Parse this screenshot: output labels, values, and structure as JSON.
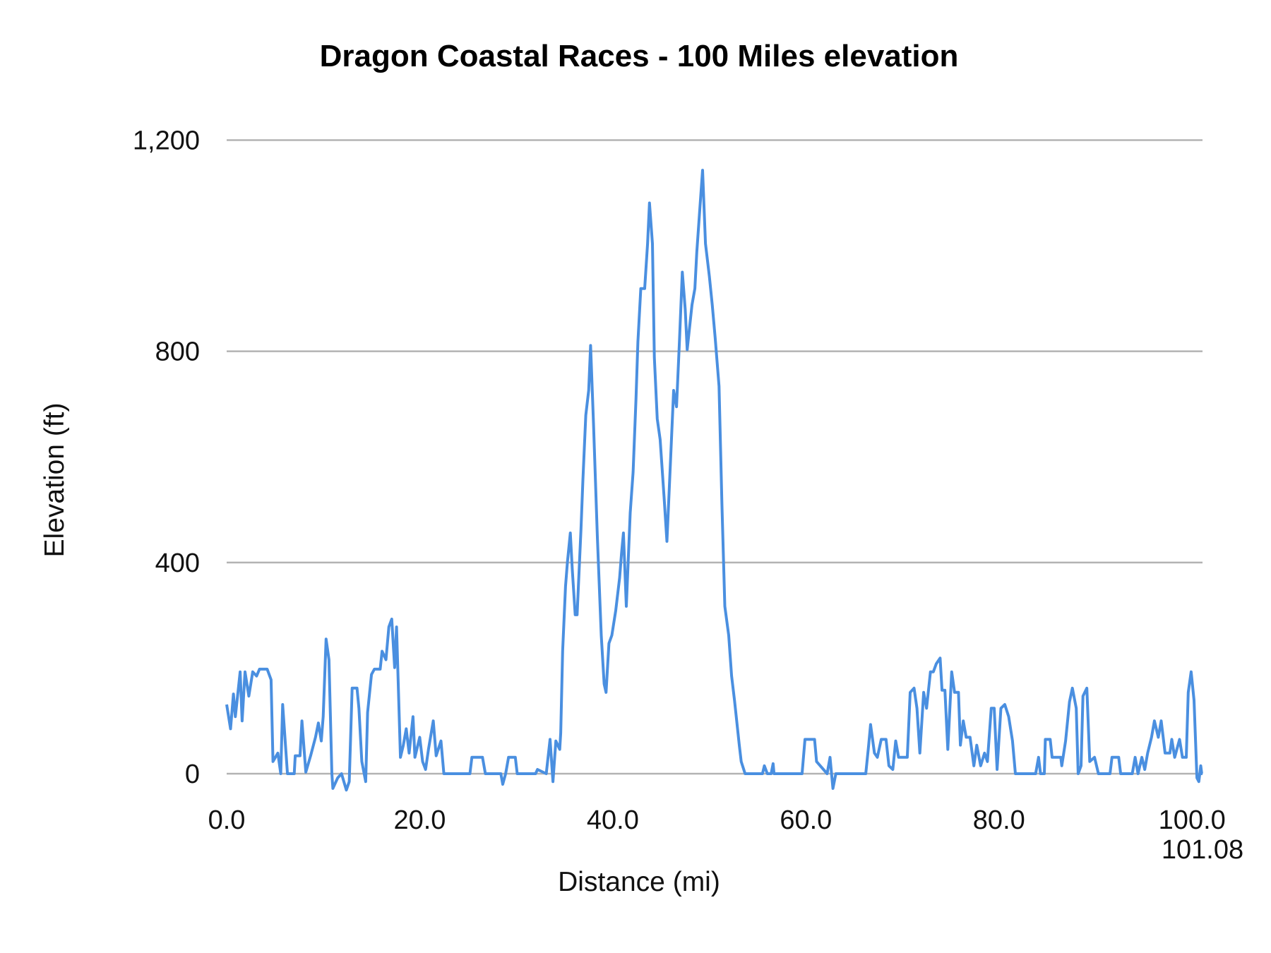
{
  "chart_data": {
    "type": "line",
    "title": "Dragon Coastal Races - 100 Miles elevation",
    "xlabel": "Distance (mi)",
    "ylabel": "Elevation (ft)",
    "xlim": [
      0,
      101.08
    ],
    "ylim": [
      0,
      1200
    ],
    "x_ticks": [
      "0.0",
      "20.0",
      "40.0",
      "60.0",
      "80.0",
      "100.0",
      "101.08"
    ],
    "x_tick_values": [
      0,
      20,
      40,
      60,
      80,
      100,
      101.08
    ],
    "y_ticks": [
      "0",
      "400",
      "800",
      "1,200"
    ],
    "y_tick_values": [
      0,
      400,
      800,
      1200
    ],
    "grid": "horizontal",
    "legend": "none",
    "colors": {
      "line": "#4a8fe0",
      "grid": "#b3b3b3"
    },
    "series": [
      {
        "x": [
          0,
          0.4,
          0.7,
          0.9,
          1.4,
          1.6,
          1.9,
          2.3,
          2.7,
          3.1,
          3.4,
          4.2,
          4.6,
          4.8,
          5.3,
          5.6,
          5.8,
          6.3,
          7.0,
          7.1,
          7.6,
          7.8,
          8.2,
          8.7,
          9.2,
          9.5,
          9.8,
          10.0,
          10.3,
          10.6,
          10.9,
          11.0,
          11.5,
          11.9,
          12.4,
          12.7,
          13.0,
          13.5,
          13.7,
          14.0,
          14.4,
          14.6,
          15.0,
          15.3,
          15.9,
          16.1,
          16.5,
          16.8,
          17.1,
          17.4,
          17.6,
          18.0,
          18.3,
          18.6,
          18.9,
          19.3,
          19.5,
          20.0,
          20.3,
          20.6,
          20.9,
          21.4,
          21.7,
          22.2,
          22.5,
          25.2,
          25.4,
          26.5,
          26.8,
          28.4,
          28.6,
          28.9,
          29.2,
          29.9,
          30.1,
          32.0,
          32.2,
          33.1,
          33.5,
          33.8,
          34.1,
          34.5,
          34.6,
          34.8,
          35.1,
          35.3,
          35.6,
          35.8,
          36.1,
          36.3,
          36.7,
          36.9,
          37.2,
          37.5,
          37.7,
          38.0,
          38.4,
          38.8,
          39.1,
          39.3,
          39.6,
          39.9,
          40.3,
          40.7,
          40.9,
          41.1,
          41.4,
          41.8,
          42.1,
          42.4,
          42.6,
          42.9,
          43.3,
          43.6,
          43.8,
          44.1,
          44.3,
          44.6,
          44.9,
          45.3,
          45.6,
          46.0,
          46.3,
          46.6,
          46.9,
          47.2,
          47.5,
          47.7,
          48.2,
          48.5,
          48.7,
          49.0,
          49.3,
          49.6,
          50.0,
          50.3,
          50.6,
          51.0,
          51.3,
          51.6,
          52.0,
          52.3,
          52.6,
          53.1,
          53.3,
          53.7,
          55.5,
          55.7,
          56.0,
          56.4,
          56.6,
          56.7,
          59.6,
          59.9,
          60.9,
          61.1,
          62.2,
          62.5,
          62.8,
          63.1,
          66.2,
          66.5,
          66.7,
          67.1,
          67.4,
          67.8,
          68.3,
          68.6,
          69.0,
          69.3,
          69.6,
          70.5,
          70.8,
          71.2,
          71.5,
          71.8,
          72.2,
          72.5,
          72.9,
          73.2,
          73.5,
          73.9,
          74.1,
          74.4,
          74.7,
          75.1,
          75.4,
          75.8,
          76.0,
          76.3,
          76.6,
          77.0,
          77.4,
          77.7,
          78.1,
          78.5,
          78.8,
          79.2,
          79.5,
          79.8,
          80.2,
          80.6,
          81.0,
          81.4,
          81.7,
          83.8,
          84.1,
          84.3,
          84.7,
          84.8,
          85.3,
          85.5,
          86.4,
          86.5,
          86.9,
          87.3,
          87.6,
          88.0,
          88.2,
          88.5,
          88.7,
          89.1,
          89.4,
          89.9,
          90.3,
          91.5,
          91.7,
          92.4,
          92.6,
          93.8,
          94.1,
          94.4,
          94.8,
          95.1,
          95.4,
          95.8,
          96.1,
          96.5,
          96.8,
          97.2,
          97.7,
          97.9,
          98.2,
          98.7,
          99.0,
          99.4,
          99.6,
          99.9,
          100.2,
          100.5,
          100.7,
          100.9,
          101.0,
          101.08
        ],
        "y": [
          131,
          85,
          151,
          108,
          193,
          100,
          193,
          147,
          193,
          185,
          198,
          198,
          178,
          23,
          39,
          0,
          131,
          0,
          0,
          34,
          34,
          100,
          3,
          34,
          69,
          96,
          62,
          108,
          255,
          216,
          0,
          -28,
          -8,
          0,
          -31,
          -15,
          162,
          162,
          124,
          23,
          -15,
          116,
          188,
          198,
          198,
          232,
          216,
          278,
          293,
          201,
          278,
          31,
          54,
          85,
          39,
          108,
          31,
          69,
          23,
          8,
          46,
          100,
          34,
          62,
          0,
          0,
          31,
          31,
          0,
          0,
          -20,
          0,
          31,
          31,
          0,
          0,
          8,
          0,
          65,
          -15,
          62,
          46,
          77,
          232,
          355,
          401,
          456,
          386,
          301,
          301,
          463,
          556,
          679,
          726,
          811,
          664,
          448,
          262,
          170,
          154,
          247,
          262,
          309,
          371,
          417,
          456,
          317,
          494,
          571,
          710,
          818,
          919,
          919,
          1004,
          1081,
          1004,
          788,
          672,
          633,
          525,
          440,
          602,
          726,
          695,
          818,
          950,
          880,
          803,
          888,
          919,
          988,
          1066,
          1143,
          1004,
          942,
          888,
          826,
          734,
          510,
          317,
          262,
          185,
          139,
          54,
          23,
          0,
          0,
          15,
          0,
          0,
          19,
          0,
          0,
          65,
          65,
          23,
          0,
          31,
          -28,
          0,
          0,
          54,
          93,
          39,
          31,
          65,
          65,
          15,
          8,
          62,
          31,
          31,
          154,
          162,
          124,
          39,
          154,
          124,
          193,
          193,
          208,
          219,
          158,
          158,
          46,
          193,
          154,
          154,
          54,
          100,
          69,
          69,
          15,
          54,
          15,
          39,
          23,
          124,
          124,
          8,
          124,
          131,
          108,
          62,
          0,
          0,
          31,
          0,
          0,
          65,
          65,
          31,
          31,
          15,
          62,
          136,
          162,
          124,
          0,
          15,
          147,
          162,
          23,
          31,
          0,
          0,
          31,
          31,
          0,
          0,
          31,
          0,
          31,
          8,
          39,
          69,
          100,
          69,
          100,
          39,
          39,
          65,
          31,
          65,
          31,
          31,
          154,
          193,
          139,
          -8,
          -15,
          15,
          0,
          0
        ]
      }
    ]
  }
}
